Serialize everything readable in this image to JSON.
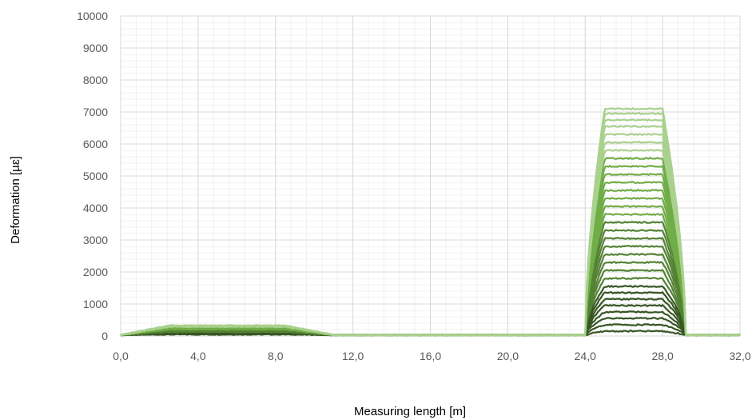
{
  "chart_data": {
    "type": "line",
    "title": "",
    "xlabel": "Measuring length  [m]",
    "ylabel": "Deformation [µɛ]",
    "xlim": [
      0,
      32
    ],
    "ylim": [
      0,
      10000
    ],
    "x_ticks": [
      "0,0",
      "4,0",
      "8,0",
      "12,0",
      "16,0",
      "20,0",
      "24,0",
      "28,0",
      "32,0"
    ],
    "y_ticks": [
      "0",
      "1000",
      "2000",
      "3000",
      "4000",
      "5000",
      "6000",
      "7000",
      "8000",
      "9000",
      "10000"
    ],
    "grid": true,
    "minor_grid": true,
    "legend": "none",
    "colors": {
      "light": "#a9d18e",
      "mid": "#70ad47",
      "dark": "#548235",
      "darkest": "#375623",
      "grid_major": "#d9d9d9",
      "grid_minor": "#f0f0f0"
    },
    "peak_region": {
      "x_start": 24.0,
      "x_end": 29.2,
      "plateau_start": 25.0,
      "plateau_end": 28.0
    },
    "early_bump": {
      "x_start": 0.0,
      "x_peak_start": 2.5,
      "x_peak_end": 8.5,
      "x_end": 11.0
    },
    "series": [
      {
        "peak": 150,
        "bump": 15
      },
      {
        "peak": 350,
        "bump": 25
      },
      {
        "peak": 550,
        "bump": 35
      },
      {
        "peak": 750,
        "bump": 45
      },
      {
        "peak": 950,
        "bump": 55
      },
      {
        "peak": 1150,
        "bump": 65
      },
      {
        "peak": 1350,
        "bump": 75
      },
      {
        "peak": 1550,
        "bump": 85
      },
      {
        "peak": 1800,
        "bump": 95
      },
      {
        "peak": 2050,
        "bump": 105
      },
      {
        "peak": 2300,
        "bump": 115
      },
      {
        "peak": 2550,
        "bump": 125
      },
      {
        "peak": 2800,
        "bump": 135
      },
      {
        "peak": 3050,
        "bump": 145
      },
      {
        "peak": 3300,
        "bump": 155
      },
      {
        "peak": 3550,
        "bump": 165
      },
      {
        "peak": 3800,
        "bump": 175
      },
      {
        "peak": 4050,
        "bump": 185
      },
      {
        "peak": 4300,
        "bump": 195
      },
      {
        "peak": 4550,
        "bump": 205
      },
      {
        "peak": 4800,
        "bump": 215
      },
      {
        "peak": 5050,
        "bump": 225
      },
      {
        "peak": 5300,
        "bump": 235
      },
      {
        "peak": 5550,
        "bump": 245
      },
      {
        "peak": 5800,
        "bump": 255
      },
      {
        "peak": 6050,
        "bump": 262
      },
      {
        "peak": 6300,
        "bump": 270
      },
      {
        "peak": 6550,
        "bump": 278
      },
      {
        "peak": 6750,
        "bump": 285
      },
      {
        "peak": 6950,
        "bump": 292
      },
      {
        "peak": 7100,
        "bump": 300
      }
    ]
  }
}
